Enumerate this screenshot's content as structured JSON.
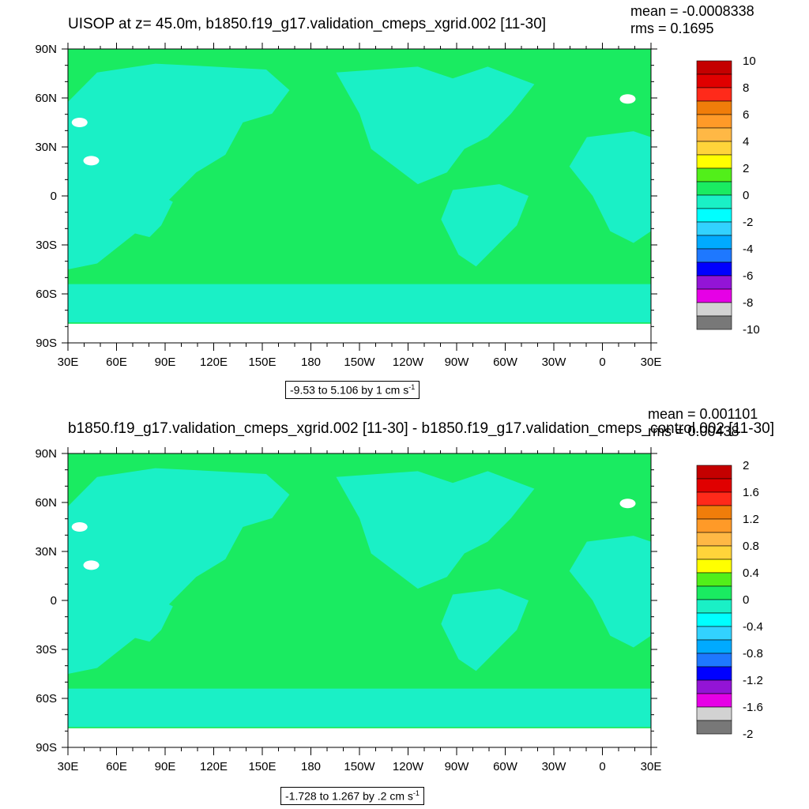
{
  "chart_data": [
    {
      "type": "heatmap",
      "projection": "cylindrical-equidistant world map",
      "title": "UISOP at z=  45.0m, b1850.f19_g17.validation_cmeps_xgrid.002 [11-30]",
      "stats": {
        "mean": "mean = -0.0008338",
        "rms": "rms = 0.1695"
      },
      "lat_ticks": [
        "90N",
        "60N",
        "30N",
        "0",
        "30S",
        "60S",
        "90S"
      ],
      "lon_ticks": [
        "30E",
        "60E",
        "90E",
        "120E",
        "150E",
        "180",
        "150W",
        "120W",
        "90W",
        "60W",
        "30W",
        "0",
        "30E"
      ],
      "range_label": {
        "text": "-9.53 to 5.106 by 1 cm s",
        "exponent": "-1"
      },
      "colorbar": {
        "labels": [
          "10",
          "8",
          "6",
          "4",
          "2",
          "0",
          "-2",
          "-4",
          "-6",
          "-8",
          "-10"
        ],
        "colors": [
          "#c40000",
          "#e00000",
          "#ff2a1a",
          "#f07d0a",
          "#ff9a28",
          "#ffb845",
          "#ffd43a",
          "#ffff00",
          "#52ef1a",
          "#1aeb61",
          "#1af0c6",
          "#00ffff",
          "#32d2ff",
          "#00aaff",
          "#1e78ff",
          "#0000ff",
          "#9314d6",
          "#e600e6",
          "#d2d2d2",
          "#787878"
        ]
      },
      "fill": {
        "ocean": "#1aeb61",
        "land": "#1af0c6",
        "missing": "#ffffff"
      }
    },
    {
      "type": "heatmap",
      "projection": "cylindrical-equidistant world map",
      "title": "b1850.f19_g17.validation_cmeps_xgrid.002 [11-30] - b1850.f19_g17.validation_cmeps_control.002 [11-30]",
      "stats": {
        "mean": "mean = 0.001101",
        "rms": "rms = 0.00438"
      },
      "lat_ticks": [
        "90N",
        "60N",
        "30N",
        "0",
        "30S",
        "60S",
        "90S"
      ],
      "lon_ticks": [
        "30E",
        "60E",
        "90E",
        "120E",
        "150E",
        "180",
        "150W",
        "120W",
        "90W",
        "60W",
        "30W",
        "0",
        "30E"
      ],
      "range_label": {
        "text": "-1.728 to 1.267 by .2 cm s",
        "exponent": "-1"
      },
      "colorbar": {
        "labels": [
          "2",
          "1.6",
          "1.2",
          "0.8",
          "0.4",
          "0",
          "-0.4",
          "-0.8",
          "-1.2",
          "-1.6",
          "-2"
        ],
        "colors": [
          "#c40000",
          "#e00000",
          "#ff2a1a",
          "#f07d0a",
          "#ff9a28",
          "#ffb845",
          "#ffd43a",
          "#ffff00",
          "#52ef1a",
          "#1aeb61",
          "#1af0c6",
          "#00ffff",
          "#32d2ff",
          "#00aaff",
          "#1e78ff",
          "#0000ff",
          "#9314d6",
          "#e600e6",
          "#d2d2d2",
          "#787878"
        ]
      },
      "fill": {
        "ocean": "#1aeb61",
        "land": "#1af0c6",
        "missing": "#ffffff"
      }
    }
  ]
}
